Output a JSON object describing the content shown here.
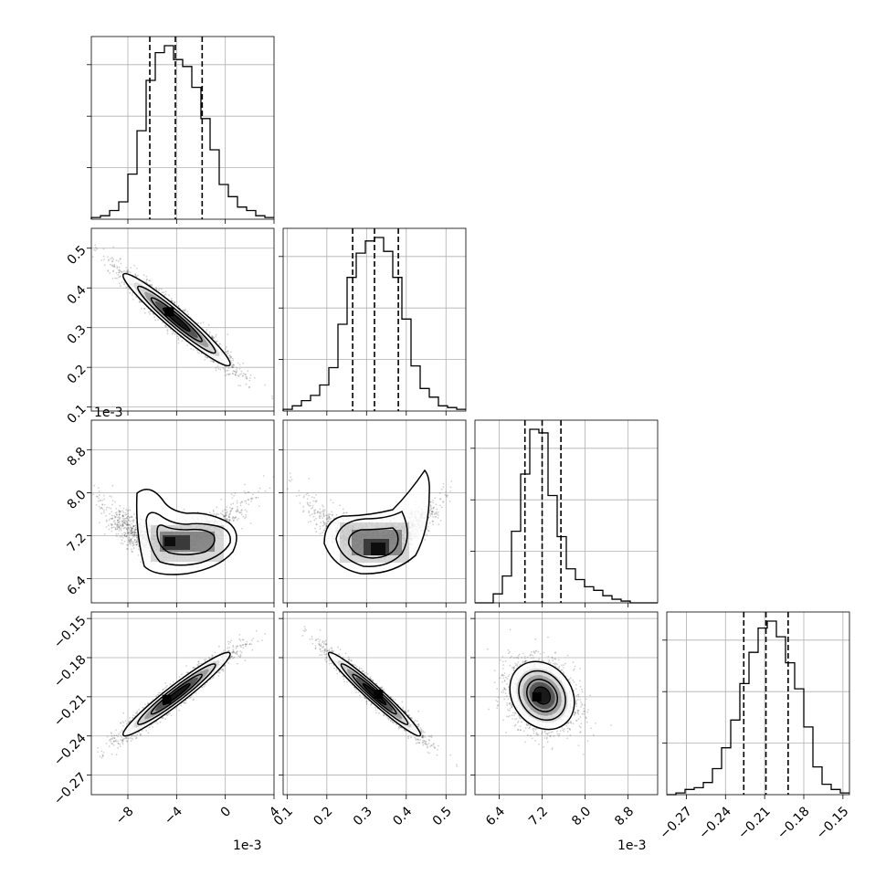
{
  "chart_data": {
    "type": "corner",
    "parameters": [
      {
        "index": 0,
        "range": [
          -11.0,
          4.0
        ],
        "ticks": [
          -8,
          -4,
          0,
          4
        ],
        "tick_labels": [
          "−8",
          "−4",
          "0",
          "4"
        ],
        "offset_text": "1e-3",
        "quantiles": [
          -6.2,
          -4.1,
          -1.9
        ]
      },
      {
        "index": 1,
        "range": [
          0.09,
          0.55
        ],
        "ticks": [
          0.1,
          0.2,
          0.3,
          0.4,
          0.5
        ],
        "tick_labels": [
          "0.1",
          "0.2",
          "0.3",
          "0.4",
          "0.5"
        ],
        "offset_text": "",
        "quantiles": [
          0.265,
          0.32,
          0.38
        ]
      },
      {
        "index": 2,
        "range": [
          5.95,
          9.35
        ],
        "ticks": [
          6.4,
          7.2,
          8.0,
          8.8
        ],
        "tick_labels": [
          "6.4",
          "7.2",
          "8.0",
          "8.8"
        ],
        "offset_text": "1e-3",
        "quantiles": [
          6.88,
          7.2,
          7.55
        ]
      },
      {
        "index": 3,
        "range": [
          -0.285,
          -0.145
        ],
        "ticks": [
          -0.27,
          -0.24,
          -0.21,
          -0.18,
          -0.15
        ],
        "tick_labels": [
          "−0.27",
          "−0.24",
          "−0.21",
          "−0.18",
          "−0.15"
        ],
        "offset_text": "",
        "quantiles": [
          -0.226,
          -0.209,
          -0.192
        ]
      }
    ],
    "histograms": [
      {
        "param": 0,
        "edges": [
          -11.0,
          -10.25,
          -9.5,
          -8.75,
          -8.0,
          -7.25,
          -6.5,
          -5.75,
          -5.0,
          -4.25,
          -3.5,
          -2.75,
          -2.0,
          -1.25,
          -0.5,
          0.25,
          1.0,
          1.75,
          2.5,
          3.25,
          4.0
        ],
        "counts": [
          0.01,
          0.02,
          0.05,
          0.1,
          0.26,
          0.51,
          0.8,
          0.96,
          1.0,
          0.92,
          0.88,
          0.76,
          0.58,
          0.4,
          0.2,
          0.13,
          0.07,
          0.05,
          0.02,
          0.01
        ]
      },
      {
        "param": 1,
        "edges": [
          0.09,
          0.113,
          0.136,
          0.159,
          0.182,
          0.205,
          0.228,
          0.251,
          0.274,
          0.297,
          0.32,
          0.343,
          0.366,
          0.389,
          0.412,
          0.435,
          0.458,
          0.481,
          0.504,
          0.527,
          0.55
        ],
        "counts": [
          0.01,
          0.03,
          0.06,
          0.09,
          0.15,
          0.25,
          0.5,
          0.77,
          0.91,
          0.98,
          1.0,
          0.92,
          0.77,
          0.53,
          0.26,
          0.13,
          0.08,
          0.03,
          0.02,
          0.01
        ]
      },
      {
        "param": 2,
        "edges": [
          5.95,
          6.12,
          6.29,
          6.46,
          6.63,
          6.8,
          6.97,
          7.14,
          7.31,
          7.48,
          7.65,
          7.82,
          7.99,
          8.16,
          8.33,
          8.5,
          8.67,
          8.84,
          9.01,
          9.18,
          9.35
        ],
        "counts": [
          0.0,
          0.0,
          0.05,
          0.15,
          0.4,
          0.72,
          0.97,
          0.95,
          0.6,
          0.37,
          0.19,
          0.13,
          0.09,
          0.07,
          0.04,
          0.02,
          0.01,
          0.0,
          0.0,
          0.0
        ]
      },
      {
        "param": 3,
        "edges": [
          -0.285,
          -0.278,
          -0.271,
          -0.264,
          -0.257,
          -0.25,
          -0.243,
          -0.236,
          -0.229,
          -0.222,
          -0.215,
          -0.208,
          -0.201,
          -0.194,
          -0.187,
          -0.18,
          -0.173,
          -0.166,
          -0.159,
          -0.152,
          -0.145
        ],
        "counts": [
          0.0,
          0.01,
          0.03,
          0.04,
          0.07,
          0.15,
          0.27,
          0.43,
          0.64,
          0.82,
          0.96,
          1.0,
          0.91,
          0.76,
          0.61,
          0.39,
          0.16,
          0.06,
          0.03,
          0.01
        ]
      }
    ],
    "pairs": [
      {
        "x": 0,
        "y": 1,
        "mean": [
          -4.0,
          0.32
        ],
        "sd": [
          2.2,
          0.058
        ],
        "rho": -0.96,
        "density_peak": [
          -4.6,
          0.34
        ]
      },
      {
        "x": 0,
        "y": 2,
        "mean": [
          -4.3,
          7.18
        ],
        "sd": [
          2.5,
          0.3
        ],
        "rho": 0.0,
        "shape": "smile",
        "density_peak": [
          -4.8,
          7.15
        ]
      },
      {
        "x": 1,
        "y": 2,
        "mean": [
          0.32,
          7.18
        ],
        "sd": [
          0.07,
          0.3
        ],
        "rho": 0.0,
        "shape": "smile",
        "density_peak": [
          0.33,
          7.1
        ]
      },
      {
        "x": 0,
        "y": 3,
        "mean": [
          -4.0,
          -0.208
        ],
        "sd": [
          2.2,
          0.016
        ],
        "rho": 0.96,
        "density_peak": [
          -4.8,
          -0.212
        ]
      },
      {
        "x": 1,
        "y": 3,
        "mean": [
          0.32,
          -0.208
        ],
        "sd": [
          0.058,
          0.016
        ],
        "rho": -0.97,
        "density_peak": [
          0.33,
          -0.208
        ]
      },
      {
        "x": 2,
        "y": 3,
        "mean": [
          7.2,
          -0.209
        ],
        "sd": [
          0.3,
          0.013
        ],
        "rho": -0.2,
        "density_peak": [
          7.1,
          -0.21
        ]
      }
    ]
  }
}
